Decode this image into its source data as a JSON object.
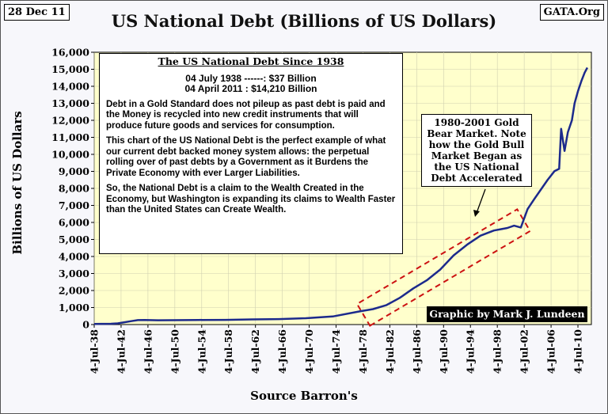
{
  "header": {
    "date": "28 Dec 11",
    "source": "GATA.Org"
  },
  "chart_data": {
    "type": "line",
    "title": "US National Debt (Billions of US Dollars)",
    "xlabel": "Source Barron's",
    "ylabel": "Billions of US Dollars",
    "ylim": [
      0,
      16000
    ],
    "yticks": [
      0,
      1000,
      2000,
      3000,
      4000,
      5000,
      6000,
      7000,
      8000,
      9000,
      10000,
      11000,
      12000,
      13000,
      14000,
      15000,
      16000
    ],
    "ytick_labels": [
      "0",
      "1,000",
      "2,000",
      "3,000",
      "4,000",
      "5,000",
      "6,000",
      "7,000",
      "8,000",
      "9,000",
      "10,000",
      "11,000",
      "12,000",
      "13,000",
      "14,000",
      "15,000",
      "16,000"
    ],
    "xlim": [
      1938.5,
      2012.5
    ],
    "xtick_years": [
      1938,
      1942,
      1946,
      1950,
      1954,
      1958,
      1962,
      1966,
      1970,
      1974,
      1978,
      1982,
      1986,
      1990,
      1994,
      1998,
      2002,
      2006,
      2010
    ],
    "xtick_labels": [
      "4-Jul-38",
      "4-Jul-42",
      "4-Jul-46",
      "4-Jul-50",
      "4-Jul-54",
      "4-Jul-58",
      "4-Jul-62",
      "4-Jul-66",
      "4-Jul-70",
      "4-Jul-74",
      "4-Jul-78",
      "4-Jul-82",
      "4-Jul-86",
      "4-Jul-90",
      "4-Jul-94",
      "4-Jul-98",
      "4-Jul-02",
      "4-Jul-06",
      "4-Jul-10"
    ],
    "grid": true,
    "series": [
      {
        "name": "US National Debt",
        "color": "#1c2a8c",
        "x": [
          1938.5,
          1940,
          1941,
          1942,
          1943,
          1944,
          1945,
          1946,
          1948,
          1950,
          1954,
          1958,
          1962,
          1966,
          1970,
          1974,
          1978,
          1980,
          1982,
          1984,
          1986,
          1988,
          1990,
          1992,
          1994,
          1996,
          1998,
          2000,
          2001,
          2002,
          2003,
          2004,
          2006,
          2007,
          2007.7,
          2008,
          2008.5,
          2009,
          2009.6,
          2010,
          2010.5,
          2011,
          2011.5,
          2011.9
        ],
        "y": [
          37,
          43,
          48,
          72,
          137,
          201,
          259,
          269,
          252,
          257,
          271,
          276,
          303,
          320,
          370,
          475,
          772,
          907,
          1142,
          1572,
          2125,
          2602,
          3233,
          4065,
          4693,
          5225,
          5526,
          5674,
          5807,
          5700,
          6783,
          7379,
          8507,
          9008,
          9150,
          11500,
          10200,
          11300,
          12000,
          13000,
          13700,
          14300,
          14800,
          15100
        ]
      }
    ],
    "annotations": [
      {
        "type": "info-box",
        "heading": "The US National Debt Since 1938",
        "stat_1938": "04 July 1938 ------: $37 Billion",
        "stat_2011": "04 April 2011 : $14,210 Billion",
        "paragraph_1": "Debt in a Gold Standard does not pileup as past debt is paid and the Money is recycled into new credit instruments that will produce future goods and services for consumption.",
        "paragraph_2": "This chart of the US National Debt is the perfect example of what our current debt backed money system allows: the perpetual rolling over of past debts by a Government as it Burdens the Private Economy with ever Larger Liabilities.",
        "paragraph_3": "So, the National Debt is a claim to the Wealth Created in the Economy, but Washington is expanding its claims to Wealth Faster than the United States can Create Wealth."
      },
      {
        "type": "callout",
        "text": "1980-2001 Gold Bear Market. Note how the Gold Bull Market Began as the US National Debt Accelerated"
      },
      {
        "type": "credit",
        "text": "Graphic by Mark J. Lundeen"
      }
    ],
    "highlight_range": [
      1980,
      2001
    ]
  },
  "colors": {
    "plot_bg": "#ffffcc",
    "line": "#1c2a8c",
    "highlight": "#cc1111",
    "grid": "#d0d0b0"
  }
}
